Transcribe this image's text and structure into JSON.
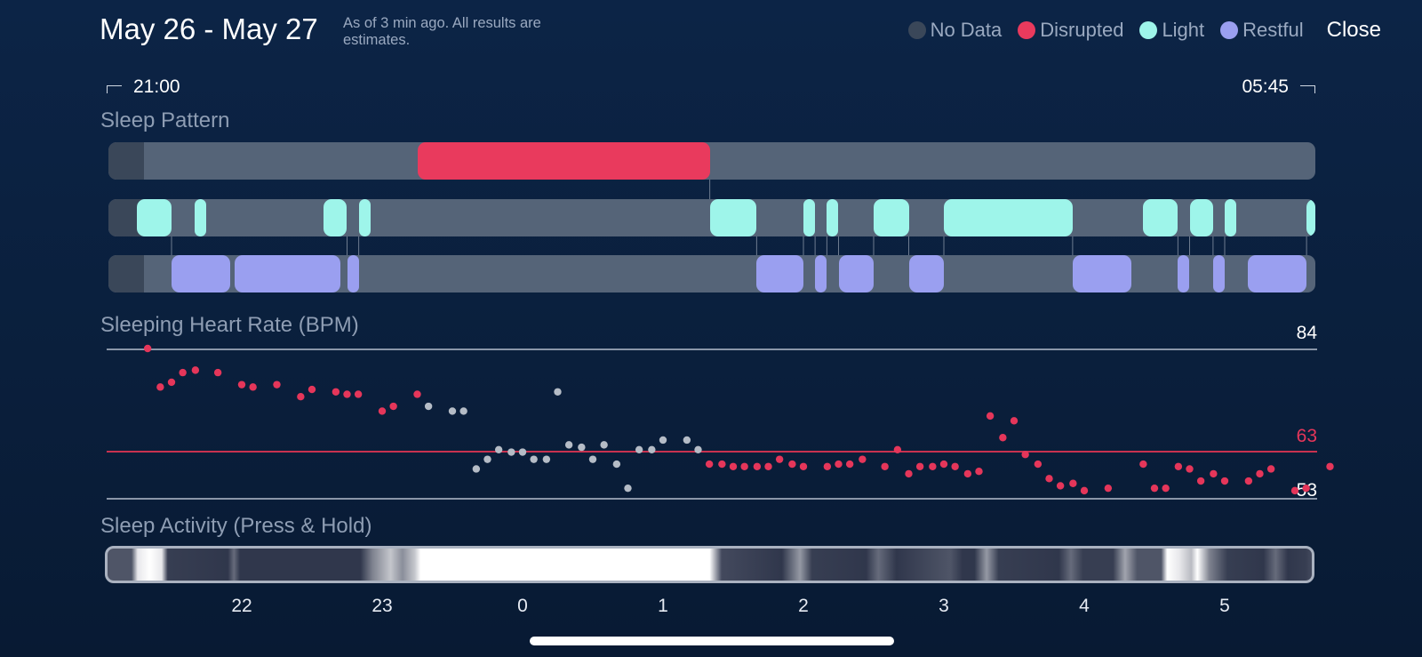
{
  "header": {
    "title": "May 26 - May 27",
    "subtitle": "As of 3 min ago. All results are estimates.",
    "close_label": "Close"
  },
  "legend": [
    {
      "label": "No Data",
      "color": "#3a4759"
    },
    {
      "label": "Disrupted",
      "color": "#e93a5d"
    },
    {
      "label": "Light",
      "color": "#9ef5ea"
    },
    {
      "label": "Restful",
      "color": "#9a9ff0"
    }
  ],
  "time_range": {
    "start": "21:00",
    "end": "05:45"
  },
  "sections": {
    "sleep_pattern": "Sleep Pattern",
    "heart_rate": "Sleeping Heart Rate (BPM)",
    "activity": "Sleep Activity (Press & Hold)"
  },
  "colors": {
    "disrupted": "#e93a5d",
    "light": "#9ef5ea",
    "restful": "#9a9ff0",
    "no_data": "#3a4759",
    "track": "#556478",
    "hr_point": "#e5365a",
    "hr_point_inactive": "#b5bcc6"
  },
  "sleep_pattern": {
    "axis_hours": [
      21,
      29.75
    ],
    "disrupted": [
      [
        23.25,
        25.333
      ]
    ],
    "light": [
      [
        21.25,
        21.5
      ],
      [
        21.667,
        21.75
      ],
      [
        22.583,
        22.75
      ],
      [
        22.833,
        22.917
      ],
      [
        25.333,
        25.667
      ],
      [
        26.0,
        26.083
      ],
      [
        26.167,
        26.25
      ],
      [
        26.5,
        26.75
      ],
      [
        27.0,
        27.917
      ],
      [
        28.417,
        28.667
      ],
      [
        28.75,
        28.917
      ],
      [
        29.0,
        29.083
      ],
      [
        29.583,
        29.75
      ]
    ],
    "restful": [
      [
        21.5,
        21.917
      ],
      [
        21.95,
        22.7
      ],
      [
        22.75,
        22.833
      ],
      [
        25.667,
        26.0
      ],
      [
        26.083,
        26.167
      ],
      [
        26.25,
        26.5
      ],
      [
        26.75,
        27.0
      ],
      [
        27.917,
        28.333
      ],
      [
        28.667,
        28.75
      ],
      [
        28.917,
        29.0
      ],
      [
        29.167,
        29.583
      ]
    ]
  },
  "heart_rate": {
    "max": "84",
    "avg": "63",
    "min": "53",
    "ylim": [
      53,
      84
    ],
    "points": [
      [
        21.33,
        84,
        1
      ],
      [
        21.42,
        76,
        1
      ],
      [
        21.5,
        77,
        1
      ],
      [
        21.58,
        79,
        1
      ],
      [
        21.67,
        79.5,
        1
      ],
      [
        21.83,
        79,
        1
      ],
      [
        22.0,
        76.5,
        1
      ],
      [
        22.08,
        76,
        1
      ],
      [
        22.25,
        76.5,
        1
      ],
      [
        22.42,
        74,
        1
      ],
      [
        22.5,
        75.5,
        1
      ],
      [
        22.67,
        75,
        1
      ],
      [
        22.75,
        74.5,
        1
      ],
      [
        22.83,
        74.5,
        1
      ],
      [
        23.0,
        71,
        1
      ],
      [
        23.08,
        72,
        1
      ],
      [
        23.25,
        74.5,
        1
      ],
      [
        23.33,
        72,
        0
      ],
      [
        23.5,
        71,
        0
      ],
      [
        23.58,
        71,
        0
      ],
      [
        23.67,
        59,
        0
      ],
      [
        23.75,
        61,
        0
      ],
      [
        23.83,
        63,
        0
      ],
      [
        23.92,
        62.5,
        0
      ],
      [
        24.0,
        62.5,
        0
      ],
      [
        24.08,
        61,
        0
      ],
      [
        24.17,
        61,
        0
      ],
      [
        24.25,
        75,
        0
      ],
      [
        24.33,
        64,
        0
      ],
      [
        24.42,
        63.5,
        0
      ],
      [
        24.5,
        61,
        0
      ],
      [
        24.58,
        64,
        0
      ],
      [
        24.67,
        60,
        0
      ],
      [
        24.75,
        55,
        0
      ],
      [
        24.83,
        63,
        0
      ],
      [
        24.92,
        63,
        0
      ],
      [
        25.0,
        65,
        0
      ],
      [
        25.17,
        65,
        0
      ],
      [
        25.25,
        63,
        0
      ],
      [
        25.33,
        60,
        1
      ],
      [
        25.42,
        60,
        1
      ],
      [
        25.5,
        59.5,
        1
      ],
      [
        25.58,
        59.5,
        1
      ],
      [
        25.67,
        59.5,
        1
      ],
      [
        25.75,
        59.5,
        1
      ],
      [
        25.83,
        61,
        1
      ],
      [
        25.92,
        60,
        1
      ],
      [
        26.0,
        59.5,
        1
      ],
      [
        26.17,
        59.5,
        1
      ],
      [
        26.25,
        60,
        1
      ],
      [
        26.33,
        60,
        1
      ],
      [
        26.42,
        61,
        1
      ],
      [
        26.58,
        59.5,
        1
      ],
      [
        26.67,
        63,
        1
      ],
      [
        26.75,
        58,
        1
      ],
      [
        26.83,
        59.5,
        1
      ],
      [
        26.92,
        59.5,
        1
      ],
      [
        27.0,
        60,
        1
      ],
      [
        27.08,
        59.5,
        1
      ],
      [
        27.17,
        58,
        1
      ],
      [
        27.25,
        58.5,
        1
      ],
      [
        27.33,
        70,
        1
      ],
      [
        27.42,
        65.5,
        1
      ],
      [
        27.5,
        69,
        1
      ],
      [
        27.58,
        62,
        1
      ],
      [
        27.67,
        60,
        1
      ],
      [
        27.75,
        57,
        1
      ],
      [
        27.83,
        55.5,
        1
      ],
      [
        27.92,
        56,
        1
      ],
      [
        28.0,
        54.5,
        1
      ],
      [
        28.17,
        55,
        1
      ],
      [
        28.42,
        60,
        1
      ],
      [
        28.5,
        55,
        1
      ],
      [
        28.58,
        55,
        1
      ],
      [
        28.67,
        59.5,
        1
      ],
      [
        28.75,
        59,
        1
      ],
      [
        28.83,
        56.5,
        1
      ],
      [
        28.92,
        58,
        1
      ],
      [
        29.0,
        56.5,
        1
      ],
      [
        29.17,
        56.5,
        1
      ],
      [
        29.25,
        58,
        1
      ],
      [
        29.33,
        59,
        1
      ],
      [
        29.5,
        54.5,
        1
      ],
      [
        29.58,
        55,
        1
      ],
      [
        29.75,
        59.5,
        1
      ]
    ]
  },
  "activity": {
    "intensity": [
      [
        0.0,
        0.25
      ],
      [
        0.02,
        0.25
      ],
      [
        0.025,
        0.9
      ],
      [
        0.035,
        1.0
      ],
      [
        0.045,
        0.9
      ],
      [
        0.05,
        0.15
      ],
      [
        0.1,
        0.12
      ],
      [
        0.105,
        0.35
      ],
      [
        0.11,
        0.12
      ],
      [
        0.21,
        0.12
      ],
      [
        0.22,
        0.45
      ],
      [
        0.235,
        0.75
      ],
      [
        0.245,
        0.5
      ],
      [
        0.255,
        0.75
      ],
      [
        0.26,
        1.0
      ],
      [
        0.5,
        1.0
      ],
      [
        0.505,
        0.6
      ],
      [
        0.51,
        0.2
      ],
      [
        0.56,
        0.12
      ],
      [
        0.575,
        0.55
      ],
      [
        0.585,
        0.15
      ],
      [
        0.63,
        0.12
      ],
      [
        0.64,
        0.35
      ],
      [
        0.655,
        0.12
      ],
      [
        0.7,
        0.25
      ],
      [
        0.71,
        0.12
      ],
      [
        0.72,
        0.12
      ],
      [
        0.73,
        0.55
      ],
      [
        0.74,
        0.15
      ],
      [
        0.79,
        0.12
      ],
      [
        0.8,
        0.35
      ],
      [
        0.81,
        0.15
      ],
      [
        0.835,
        0.15
      ],
      [
        0.845,
        0.6
      ],
      [
        0.855,
        0.25
      ],
      [
        0.875,
        0.25
      ],
      [
        0.88,
        1.0
      ],
      [
        0.89,
        0.9
      ],
      [
        0.9,
        0.7
      ],
      [
        0.905,
        1.0
      ],
      [
        0.915,
        0.45
      ],
      [
        0.93,
        0.15
      ],
      [
        0.96,
        0.12
      ],
      [
        0.97,
        0.35
      ],
      [
        0.98,
        0.12
      ],
      [
        0.995,
        0.15
      ],
      [
        1.0,
        0.2
      ]
    ]
  },
  "x_axis": {
    "ticks": [
      {
        "label": "22",
        "hour": 22
      },
      {
        "label": "23",
        "hour": 23
      },
      {
        "label": "0",
        "hour": 24
      },
      {
        "label": "1",
        "hour": 25
      },
      {
        "label": "2",
        "hour": 26
      },
      {
        "label": "3",
        "hour": 27
      },
      {
        "label": "4",
        "hour": 28
      },
      {
        "label": "5",
        "hour": 29
      }
    ]
  }
}
